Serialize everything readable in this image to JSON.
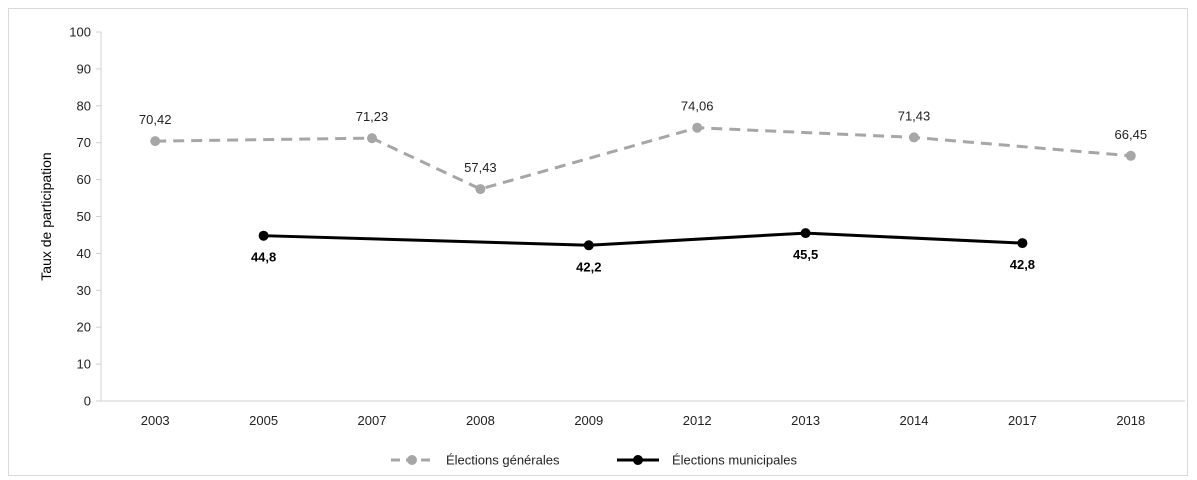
{
  "chart_data": {
    "type": "line",
    "title": "",
    "xlabel": "",
    "ylabel": "Taux de participation",
    "categories": [
      "2003",
      "2005",
      "2007",
      "2008",
      "2009",
      "2012",
      "2013",
      "2014",
      "2017",
      "2018"
    ],
    "y_ticks": [
      "0",
      "10",
      "20",
      "30",
      "40",
      "50",
      "60",
      "70",
      "80",
      "90",
      "100"
    ],
    "ylim": [
      0,
      100
    ],
    "grid": false,
    "legend_position": "bottom",
    "series": [
      {
        "name": "Élections générales",
        "color": "#a6a6a6",
        "style": "dashed",
        "values": [
          70.42,
          null,
          71.23,
          57.43,
          null,
          74.06,
          null,
          71.43,
          null,
          66.45
        ],
        "labels": [
          "70,42",
          "",
          "71,23",
          "57,43",
          "",
          "74,06",
          "",
          "71,43",
          "",
          "66,45"
        ]
      },
      {
        "name": "Élections municipales",
        "color": "#000000",
        "style": "solid",
        "values": [
          null,
          44.8,
          null,
          null,
          42.2,
          null,
          45.5,
          null,
          42.8,
          null
        ],
        "labels": [
          "",
          "44,8",
          "",
          "",
          "42,2",
          "",
          "45,5",
          "",
          "42,8",
          ""
        ]
      }
    ]
  }
}
